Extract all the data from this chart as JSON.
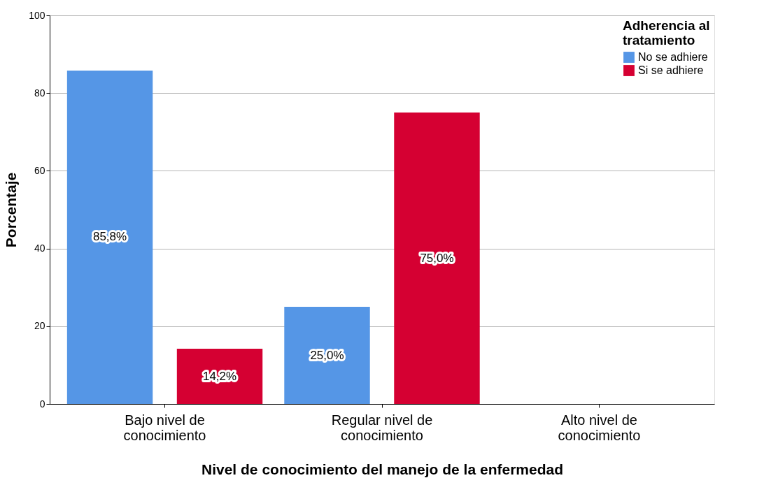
{
  "chart_data": {
    "type": "bar",
    "xlabel": "Nivel de conocimiento del manejo de la enfermedad",
    "ylabel": "Porcentaje",
    "legend_title": "Adherencia al tratamiento",
    "categories": [
      "Bajo nivel de conocimiento",
      "Regular nivel de conocimiento",
      "Alto nivel de conocimiento"
    ],
    "series": [
      {
        "name": "No se adhiere",
        "color": "#5596e6",
        "values": [
          85.8,
          25.0,
          null
        ],
        "value_labels": [
          "85,8%",
          "25,0%",
          null
        ]
      },
      {
        "name": "Si se adhiere",
        "color": "#d50032",
        "values": [
          14.2,
          75.0,
          null
        ],
        "value_labels": [
          "14,2%",
          "75,0%",
          null
        ]
      }
    ],
    "ylim": [
      0,
      100
    ],
    "yticks": [
      0,
      20,
      40,
      60,
      80,
      100
    ],
    "grid": "y",
    "legend": "top right"
  }
}
